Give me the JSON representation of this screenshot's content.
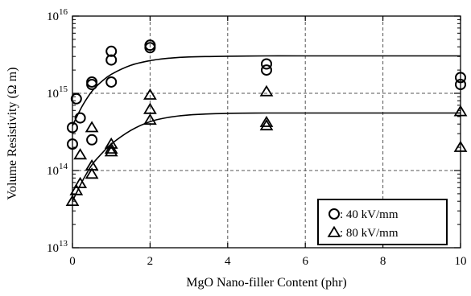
{
  "chart_data": {
    "type": "scatter",
    "x_axis": {
      "label": "MgO Nano-filler Content (phr)",
      "range": [
        0,
        10
      ],
      "ticks": [
        0,
        2,
        4,
        6,
        8,
        10
      ],
      "tick_labels": [
        "0",
        "2",
        "4",
        "6",
        "8",
        "10"
      ],
      "grid": true
    },
    "y_axis": {
      "label": "Volume Resistivity (Ω m)",
      "scale": "log",
      "range": [
        10000000000000.0,
        1e+16
      ],
      "ticks": [
        10000000000000.0,
        100000000000000.0,
        1000000000000000.0,
        1e+16
      ],
      "tick_labels": [
        {
          "base": "10",
          "exp": "13"
        },
        {
          "base": "10",
          "exp": "14"
        },
        {
          "base": "10",
          "exp": "15"
        },
        {
          "base": "10",
          "exp": "16"
        }
      ],
      "grid": true
    },
    "legend": {
      "placement": "bottom-right",
      "border": true
    },
    "series": [
      {
        "name": ": 40 kV/mm",
        "marker": "circle",
        "color": "#000000",
        "points": [
          {
            "x": 0,
            "y": 220000000000000.0
          },
          {
            "x": 0,
            "y": 360000000000000.0
          },
          {
            "x": 0.1,
            "y": 850000000000000.0
          },
          {
            "x": 0.2,
            "y": 480000000000000.0
          },
          {
            "x": 0.5,
            "y": 1300000000000000.0
          },
          {
            "x": 0.5,
            "y": 1400000000000000.0
          },
          {
            "x": 0.5,
            "y": 250000000000000.0
          },
          {
            "x": 1,
            "y": 3500000000000000.0
          },
          {
            "x": 1,
            "y": 2700000000000000.0
          },
          {
            "x": 1,
            "y": 1400000000000000.0
          },
          {
            "x": 2,
            "y": 4200000000000000.0
          },
          {
            "x": 2,
            "y": 3900000000000000.0
          },
          {
            "x": 5,
            "y": 2400000000000000.0
          },
          {
            "x": 5,
            "y": 2000000000000000.0
          },
          {
            "x": 10,
            "y": 1600000000000000.0
          },
          {
            "x": 10,
            "y": 1300000000000000.0
          }
        ],
        "fit": [
          {
            "x": 0,
            "y": 380000000000000.0
          },
          {
            "x": 0.25,
            "y": 680000000000000.0
          },
          {
            "x": 0.5,
            "y": 1060000000000000.0
          },
          {
            "x": 0.75,
            "y": 1420000000000000.0
          },
          {
            "x": 1,
            "y": 1760000000000000.0
          },
          {
            "x": 1.5,
            "y": 2300000000000000.0
          },
          {
            "x": 2,
            "y": 2650000000000000.0
          },
          {
            "x": 2.5,
            "y": 2850000000000000.0
          },
          {
            "x": 3,
            "y": 2960000000000000.0
          },
          {
            "x": 4,
            "y": 3020000000000000.0
          },
          {
            "x": 5,
            "y": 3050000000000000.0
          },
          {
            "x": 6,
            "y": 3050000000000000.0
          },
          {
            "x": 8,
            "y": 3050000000000000.0
          },
          {
            "x": 10,
            "y": 3050000000000000.0
          }
        ]
      },
      {
        "name": ": 80 kV/mm",
        "marker": "triangle",
        "color": "#000000",
        "points": [
          {
            "x": 0,
            "y": 40000000000000.0
          },
          {
            "x": 0.1,
            "y": 55000000000000.0
          },
          {
            "x": 0.2,
            "y": 68000000000000.0
          },
          {
            "x": 0.2,
            "y": 160000000000000.0
          },
          {
            "x": 0.5,
            "y": 360000000000000.0
          },
          {
            "x": 0.5,
            "y": 115000000000000.0
          },
          {
            "x": 0.5,
            "y": 90000000000000.0
          },
          {
            "x": 1,
            "y": 220000000000000.0
          },
          {
            "x": 1,
            "y": 190000000000000.0
          },
          {
            "x": 1,
            "y": 175000000000000.0
          },
          {
            "x": 2,
            "y": 950000000000000.0
          },
          {
            "x": 2,
            "y": 620000000000000.0
          },
          {
            "x": 2,
            "y": 450000000000000.0
          },
          {
            "x": 5,
            "y": 1050000000000000.0
          },
          {
            "x": 5,
            "y": 420000000000000.0
          },
          {
            "x": 5,
            "y": 380000000000000.0
          },
          {
            "x": 10,
            "y": 580000000000000.0
          },
          {
            "x": 10,
            "y": 200000000000000.0
          }
        ],
        "fit": [
          {
            "x": 0,
            "y": 40000000000000.0
          },
          {
            "x": 0.25,
            "y": 72000000000000.0
          },
          {
            "x": 0.5,
            "y": 118000000000000.0
          },
          {
            "x": 0.75,
            "y": 165000000000000.0
          },
          {
            "x": 1,
            "y": 220000000000000.0
          },
          {
            "x": 1.5,
            "y": 330000000000000.0
          },
          {
            "x": 2,
            "y": 430000000000000.0
          },
          {
            "x": 2.5,
            "y": 490000000000000.0
          },
          {
            "x": 3,
            "y": 525000000000000.0
          },
          {
            "x": 4,
            "y": 550000000000000.0
          },
          {
            "x": 5,
            "y": 555000000000000.0
          },
          {
            "x": 6,
            "y": 555000000000000.0
          },
          {
            "x": 8,
            "y": 555000000000000.0
          },
          {
            "x": 10,
            "y": 555000000000000.0
          }
        ]
      }
    ]
  }
}
